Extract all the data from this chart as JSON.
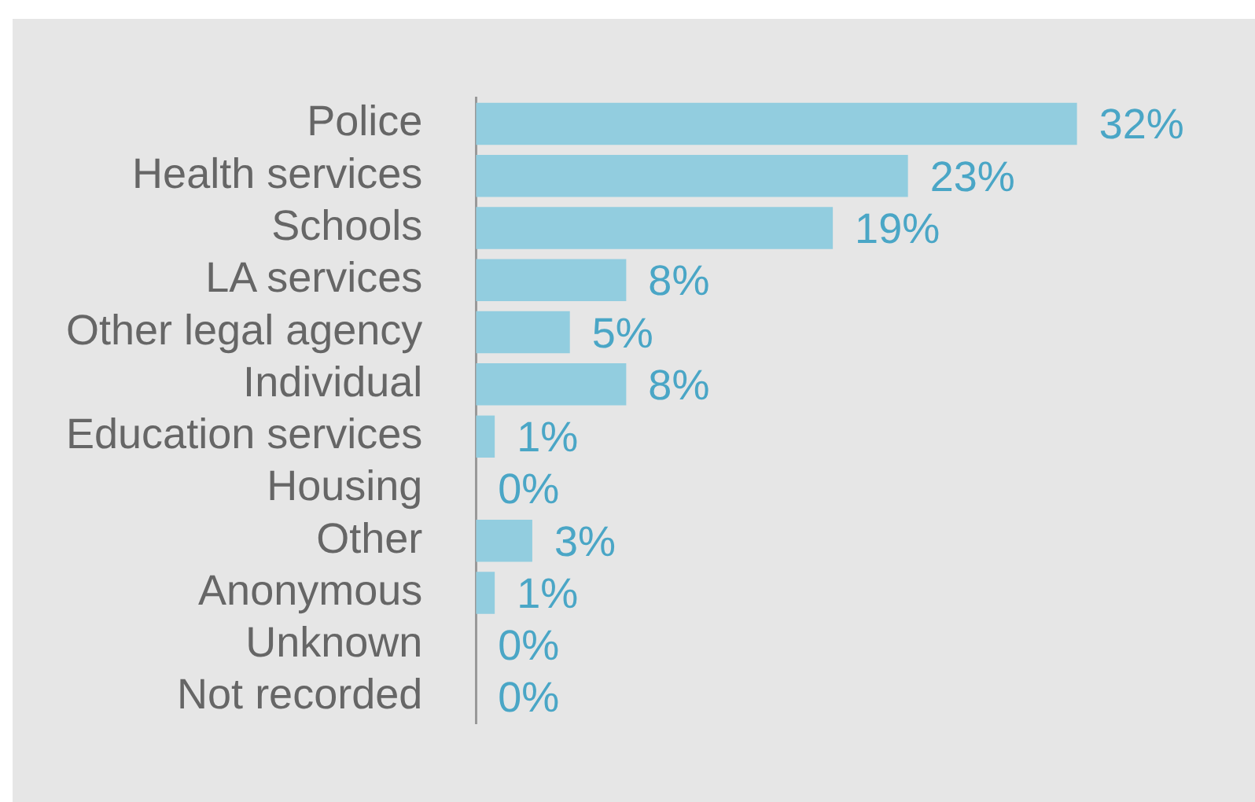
{
  "chart_data": {
    "type": "bar",
    "orientation": "horizontal",
    "tick_labels": "y",
    "categories": [
      "Police",
      "Health services",
      "Schools",
      "LA services",
      "Other legal agency",
      "Individual",
      "Education services",
      "Housing",
      "Other",
      "Anonymous",
      "Unknown",
      "Not recorded"
    ],
    "values": [
      32,
      23,
      19,
      8,
      5,
      8,
      1,
      0,
      3,
      1,
      0,
      0
    ],
    "value_labels": [
      "32%",
      "23%",
      "19%",
      "8%",
      "5%",
      "8%",
      "1%",
      "0%",
      "3%",
      "1%",
      "0%",
      "0%"
    ],
    "color": "#92cddf",
    "legend": false
  }
}
